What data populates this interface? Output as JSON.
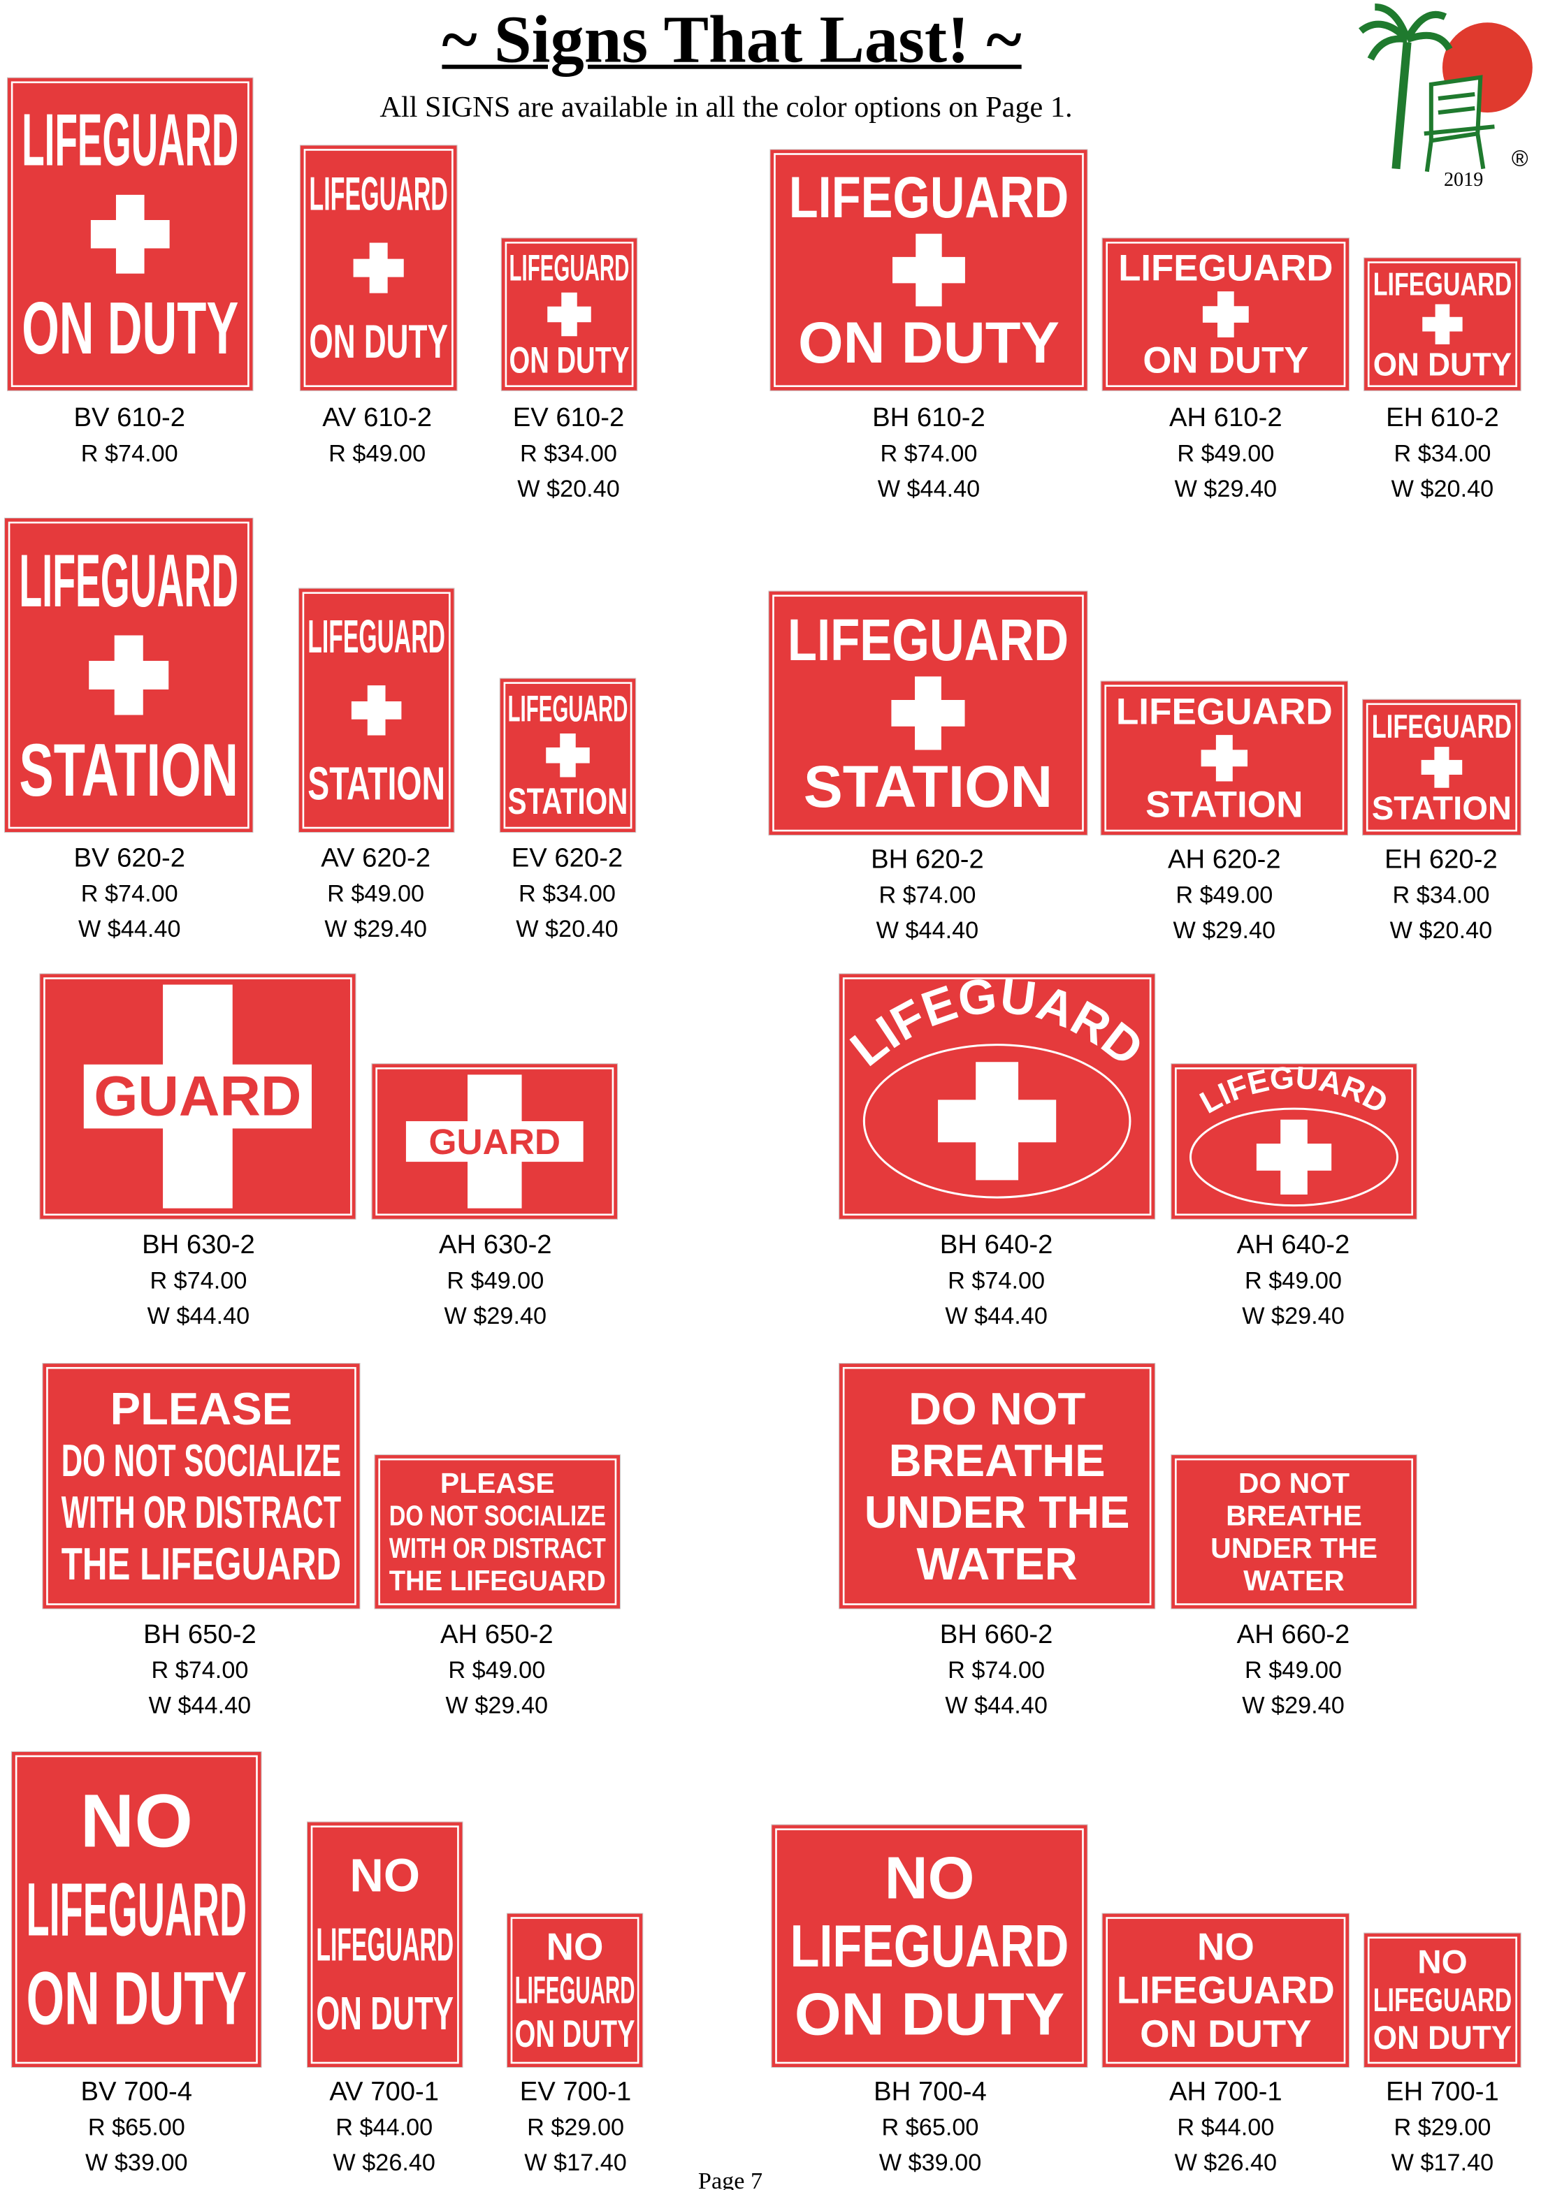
{
  "header": {
    "title": "~ Signs That Last! ~",
    "subtitle": "All SIGNS are available in all the color options on Page 1.",
    "logo_year": "2019",
    "logo_mark": "®"
  },
  "products": [
    {
      "code": "BV 610-2",
      "retail": "R $74.00",
      "sign": [
        "LIFEGUARD",
        "ON DUTY"
      ]
    },
    {
      "code": "AV 610-2",
      "retail": "R $49.00",
      "sign": [
        "LIFEGUARD",
        "ON DUTY"
      ]
    },
    {
      "code": "EV 610-2",
      "retail": "R $34.00",
      "wholesale": "W $20.40",
      "sign": [
        "LIFEGUARD",
        "ON DUTY"
      ]
    },
    {
      "code": "BH 610-2",
      "retail": "R $74.00",
      "wholesale": "W $44.40",
      "sign": [
        "LIFEGUARD",
        "ON DUTY"
      ]
    },
    {
      "code": "AH 610-2",
      "retail": "R $49.00",
      "wholesale": "W $29.40",
      "sign": [
        "LIFEGUARD",
        "ON DUTY"
      ]
    },
    {
      "code": "EH 610-2",
      "retail": "R $34.00",
      "wholesale": "W $20.40",
      "sign": [
        "LIFEGUARD",
        "ON DUTY"
      ]
    },
    {
      "code": "BV 620-2",
      "retail": "R $74.00",
      "wholesale": "W $44.40",
      "sign": [
        "LIFEGUARD",
        "STATION"
      ]
    },
    {
      "code": "AV 620-2",
      "retail": "R $49.00",
      "wholesale": "W $29.40",
      "sign": [
        "LIFEGUARD",
        "STATION"
      ]
    },
    {
      "code": "EV 620-2",
      "retail": "R $34.00",
      "wholesale": "W $20.40",
      "sign": [
        "LIFEGUARD",
        "STATION"
      ]
    },
    {
      "code": "BH 620-2",
      "retail": "R $74.00",
      "wholesale": "W $44.40",
      "sign": [
        "LIFEGUARD",
        "STATION"
      ]
    },
    {
      "code": "AH 620-2",
      "retail": "R $49.00",
      "wholesale": "W $29.40",
      "sign": [
        "LIFEGUARD",
        "STATION"
      ]
    },
    {
      "code": "EH 620-2",
      "retail": "R $34.00",
      "wholesale": "W $20.40",
      "sign": [
        "LIFEGUARD",
        "STATION"
      ]
    },
    {
      "code": "BH 630-2",
      "retail": "R $74.00",
      "wholesale": "W $44.40",
      "sign": [
        "GUARD"
      ]
    },
    {
      "code": "AH 630-2",
      "retail": "R $49.00",
      "wholesale": "W $29.40",
      "sign": [
        "GUARD"
      ]
    },
    {
      "code": "BH 640-2",
      "retail": "R $74.00",
      "wholesale": "W $44.40",
      "sign": [
        "LIFEGUARD"
      ]
    },
    {
      "code": "AH 640-2",
      "retail": "R $49.00",
      "wholesale": "W $29.40",
      "sign": [
        "LIFEGUARD"
      ]
    },
    {
      "code": "BH 650-2",
      "retail": "R $74.00",
      "wholesale": "W $44.40",
      "sign": [
        "PLEASE",
        "DO NOT SOCIALIZE",
        "WITH OR DISTRACT",
        "THE LIFEGUARD"
      ]
    },
    {
      "code": "AH 650-2",
      "retail": "R $49.00",
      "wholesale": "W $29.40",
      "sign": [
        "PLEASE",
        "DO NOT SOCIALIZE",
        "WITH OR DISTRACT",
        "THE LIFEGUARD"
      ]
    },
    {
      "code": "BH 660-2",
      "retail": "R $74.00",
      "wholesale": "W $44.40",
      "sign": [
        "DO NOT",
        "BREATHE",
        "UNDER THE",
        "WATER"
      ]
    },
    {
      "code": "AH 660-2",
      "retail": "R $49.00",
      "wholesale": "W $29.40",
      "sign": [
        "DO NOT",
        "BREATHE",
        "UNDER THE",
        "WATER"
      ]
    },
    {
      "code": "BV 700-4",
      "retail": "R $65.00",
      "wholesale": "W $39.00",
      "sign": [
        "NO",
        "LIFEGUARD",
        "ON DUTY"
      ]
    },
    {
      "code": "AV 700-1",
      "retail": "R $44.00",
      "wholesale": "W $26.40",
      "sign": [
        "NO",
        "LIFEGUARD",
        "ON DUTY"
      ]
    },
    {
      "code": "EV 700-1",
      "retail": "R $29.00",
      "wholesale": "W $17.40",
      "sign": [
        "NO",
        "LIFEGUARD",
        "ON DUTY"
      ]
    },
    {
      "code": "BH 700-4",
      "retail": "R $65.00",
      "wholesale": "W $39.00",
      "sign": [
        "NO",
        "LIFEGUARD",
        "ON DUTY"
      ]
    },
    {
      "code": "AH 700-1",
      "retail": "R $44.00",
      "wholesale": "W $26.40",
      "sign": [
        "NO",
        "LIFEGUARD",
        "ON DUTY"
      ]
    },
    {
      "code": "EH 700-1",
      "retail": "R $29.00",
      "wholesale": "W $17.40",
      "sign": [
        "NO",
        "LIFEGUARD",
        "ON DUTY"
      ]
    }
  ],
  "footer": {
    "page": "Page 7"
  }
}
